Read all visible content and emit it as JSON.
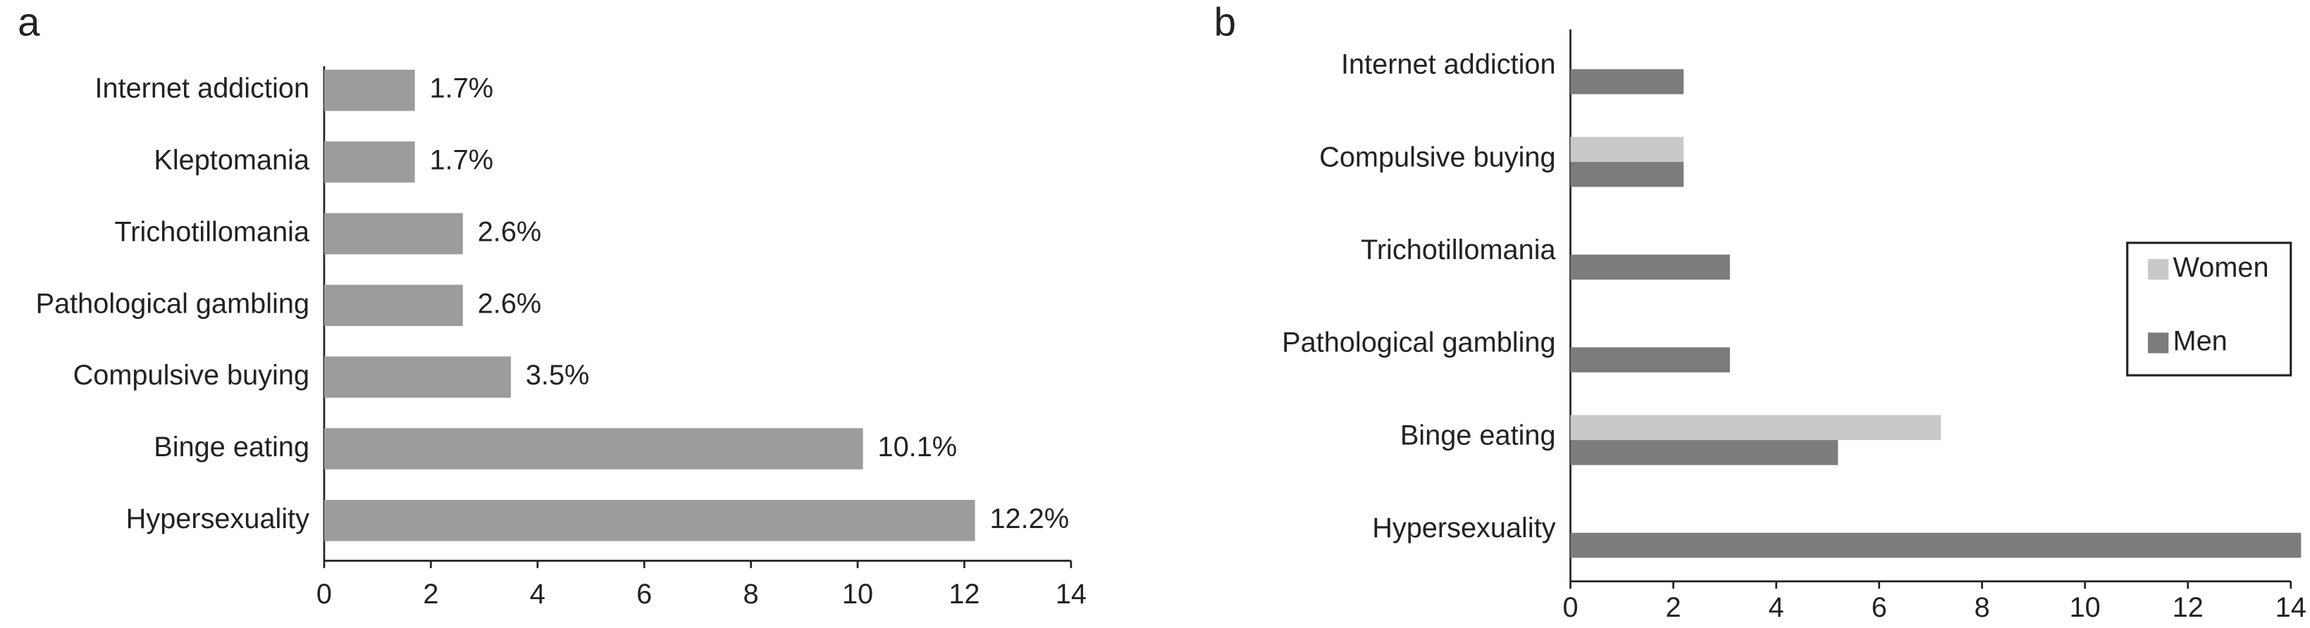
{
  "chart_data": [
    {
      "type": "bar",
      "orientation": "horizontal",
      "title": "a",
      "categories": [
        "Internet addiction",
        "Kleptomania",
        "Trichotillomania",
        "Pathological gambling",
        "Compulsive buying",
        "Binge eating",
        "Hypersexuality"
      ],
      "values": [
        1.7,
        1.7,
        2.6,
        2.6,
        3.5,
        10.1,
        12.2
      ],
      "value_labels": [
        "1.7%",
        "1.7%",
        "2.6%",
        "2.6%",
        "3.5%",
        "10.1%",
        "12.2%"
      ],
      "color": "#9a9c9e",
      "xlim": [
        0,
        14
      ],
      "xticks": [
        0,
        2,
        4,
        6,
        8,
        10,
        12,
        14
      ],
      "grid": false
    },
    {
      "type": "grouped_bar",
      "orientation": "horizontal",
      "title": "b",
      "categories": [
        "Internet addiction",
        "Compulsive buying",
        "Trichotillomania",
        "Pathological gambling",
        "Binge eating",
        "Hypersexuality"
      ],
      "series": [
        {
          "name": "Women",
          "color": "#c8c9ca",
          "values": [
            0,
            2.2,
            0,
            0,
            7.2,
            0
          ]
        },
        {
          "name": "Men",
          "color": "#7b7c7e",
          "values": [
            2.2,
            2.2,
            3.1,
            3.1,
            5.2,
            14.2
          ]
        }
      ],
      "xlim": [
        0,
        14
      ],
      "xticks": [
        0,
        2,
        4,
        6,
        8,
        10,
        12,
        14
      ],
      "grid": false,
      "legend": "right"
    }
  ]
}
